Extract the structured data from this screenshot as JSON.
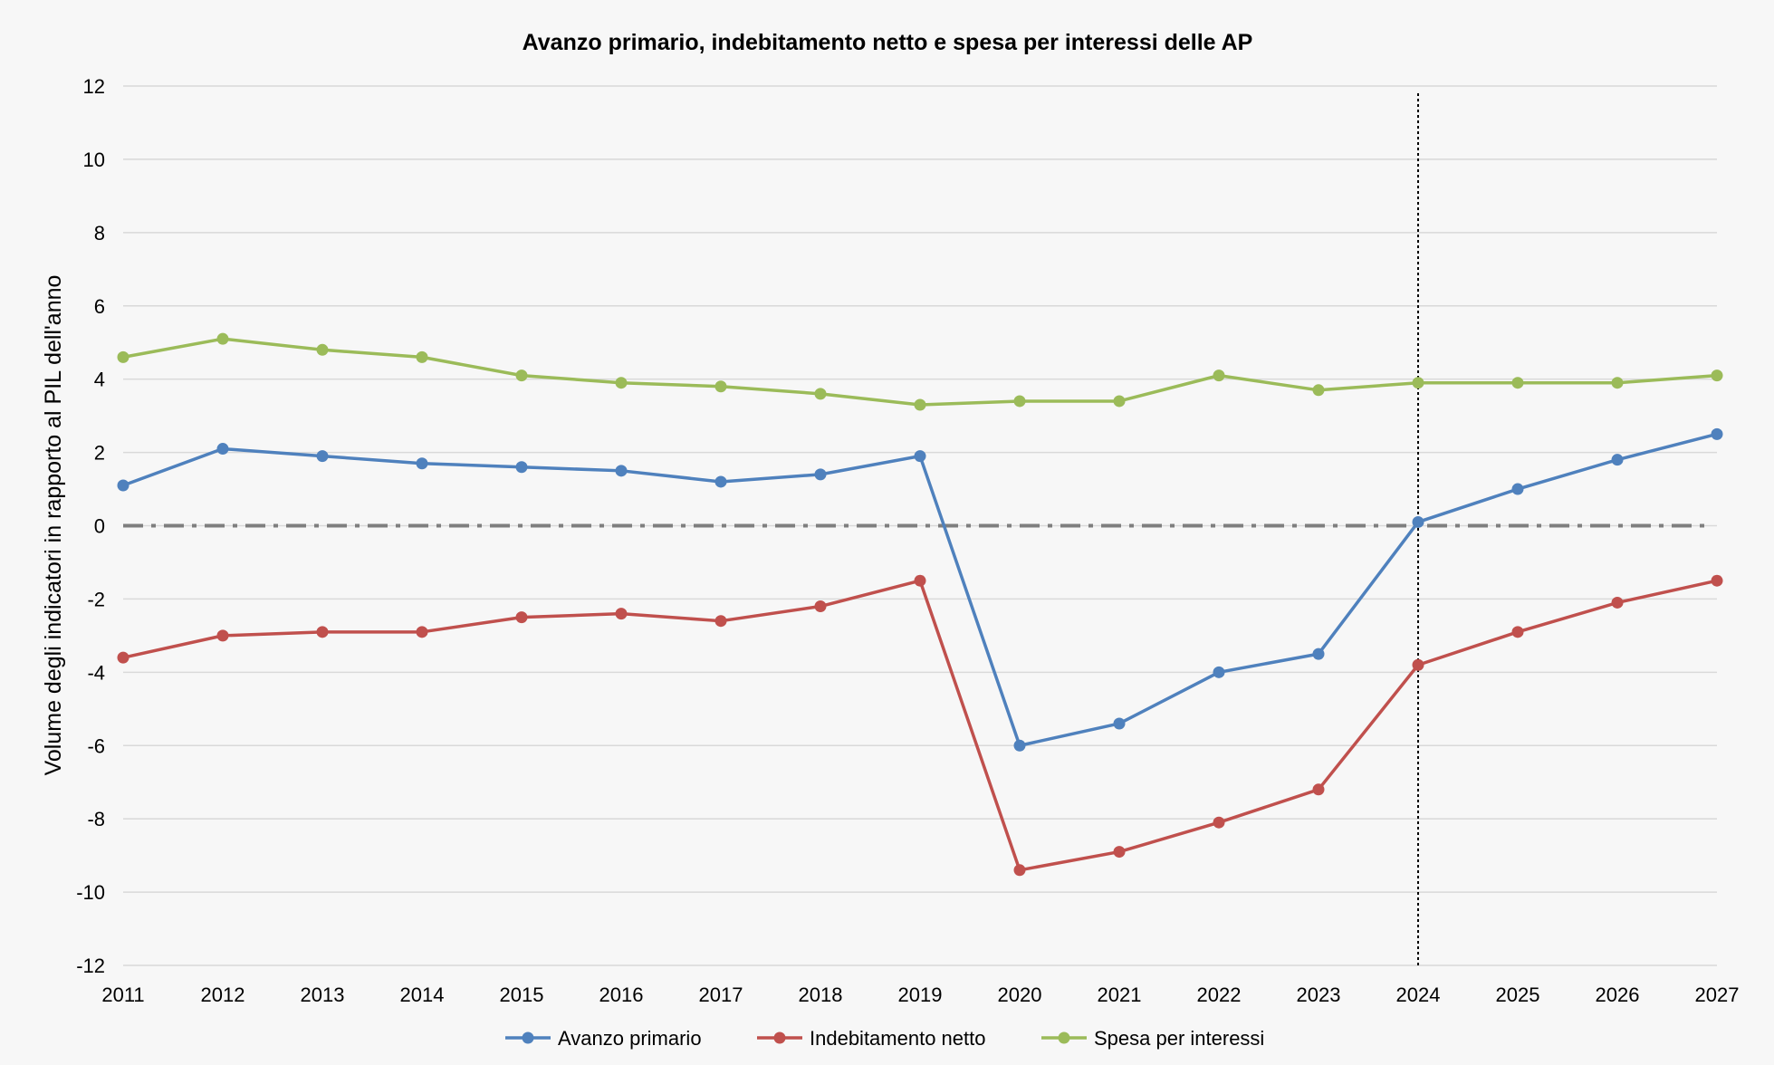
{
  "chart_data": {
    "type": "line",
    "title": "Avanzo primario, indebitamento netto e spesa per interessi delle AP",
    "xlabel": "",
    "ylabel": "Volume degli indicatori in rapporto al PIL dell'anno",
    "x": [
      "2011",
      "2012",
      "2013",
      "2014",
      "2015",
      "2016",
      "2017",
      "2018",
      "2019",
      "2020",
      "2021",
      "2022",
      "2023",
      "2024",
      "2025",
      "2026",
      "2027"
    ],
    "yticks": [
      "12",
      "10",
      "8",
      "6",
      "4",
      "2",
      "0",
      "-2",
      "-4",
      "-6",
      "-8",
      "-10",
      "-12"
    ],
    "ylim": [
      -12,
      12
    ],
    "grid": true,
    "legend_position": "bottom",
    "reference_lines": {
      "zero_line": {
        "y": 0,
        "style": "dash-dot",
        "color": "#7f7f7f"
      },
      "forecast_divider": {
        "x": "2024",
        "style": "dotted",
        "color": "#000000"
      }
    },
    "series": [
      {
        "name": "Avanzo primario",
        "color": "#4f81bd",
        "values": [
          1.1,
          2.1,
          1.9,
          1.7,
          1.6,
          1.5,
          1.2,
          1.4,
          1.9,
          -6.0,
          -5.4,
          -4.0,
          -3.5,
          0.1,
          1.0,
          1.8,
          2.5
        ]
      },
      {
        "name": "Indebitamento netto",
        "color": "#c0504d",
        "values": [
          -3.6,
          -3.0,
          -2.9,
          -2.9,
          -2.5,
          -2.4,
          -2.6,
          -2.2,
          -1.5,
          -9.4,
          -8.9,
          -8.1,
          -7.2,
          -3.8,
          -2.9,
          -2.1,
          -1.5
        ]
      },
      {
        "name": "Spesa per interessi",
        "color": "#9bbb59",
        "values": [
          4.6,
          5.1,
          4.8,
          4.6,
          4.1,
          3.9,
          3.8,
          3.6,
          3.3,
          3.4,
          3.4,
          4.1,
          3.7,
          3.9,
          3.9,
          3.9,
          4.1
        ]
      }
    ]
  }
}
